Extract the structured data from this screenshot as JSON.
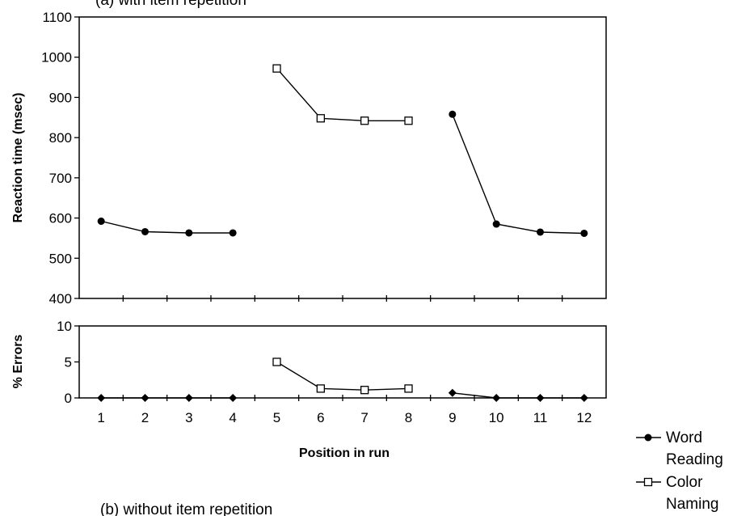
{
  "figure": {
    "caption_top": "(a) with item repetition",
    "caption_bottom": "(b) without item repetition"
  },
  "legend": {
    "word_line1": "Word",
    "word_line2": "Reading",
    "color_line1": "Color",
    "color_line2": "Naming"
  },
  "chart_data": [
    {
      "type": "line",
      "title": "",
      "xlabel": "Position in run",
      "ylabel": "Reaction time (msec)",
      "ylim": [
        400,
        1100
      ],
      "yticks": [
        400,
        500,
        600,
        700,
        800,
        900,
        1000,
        1100
      ],
      "x": [
        1,
        2,
        3,
        4,
        5,
        6,
        7,
        8,
        9,
        10,
        11,
        12
      ],
      "grid": false,
      "series": [
        {
          "name": "Word Reading",
          "marker": "filled-circle",
          "segments": [
            {
              "x": [
                1,
                2,
                3,
                4
              ],
              "y": [
                592,
                566,
                563,
                563
              ]
            },
            {
              "x": [
                9,
                10,
                11,
                12
              ],
              "y": [
                858,
                585,
                565,
                562
              ]
            }
          ]
        },
        {
          "name": "Color Naming",
          "marker": "open-square",
          "segments": [
            {
              "x": [
                5,
                6,
                7,
                8
              ],
              "y": [
                972,
                848,
                842,
                842
              ]
            }
          ]
        }
      ]
    },
    {
      "type": "line",
      "title": "",
      "xlabel": "Position in run",
      "ylabel": "% Errors",
      "ylim": [
        0,
        10
      ],
      "yticks": [
        0,
        5,
        10
      ],
      "x": [
        1,
        2,
        3,
        4,
        5,
        6,
        7,
        8,
        9,
        10,
        11,
        12
      ],
      "grid": false,
      "series": [
        {
          "name": "Word Reading",
          "marker": "filled-diamond",
          "segments": [
            {
              "x": [
                1,
                2,
                3,
                4
              ],
              "y": [
                0,
                0,
                0,
                0
              ]
            },
            {
              "x": [
                9,
                10,
                11,
                12
              ],
              "y": [
                0.7,
                0,
                0,
                0
              ]
            }
          ]
        },
        {
          "name": "Color Naming",
          "marker": "open-square",
          "segments": [
            {
              "x": [
                5,
                6,
                7,
                8
              ],
              "y": [
                5.0,
                1.3,
                1.1,
                1.3
              ]
            }
          ]
        }
      ]
    }
  ]
}
